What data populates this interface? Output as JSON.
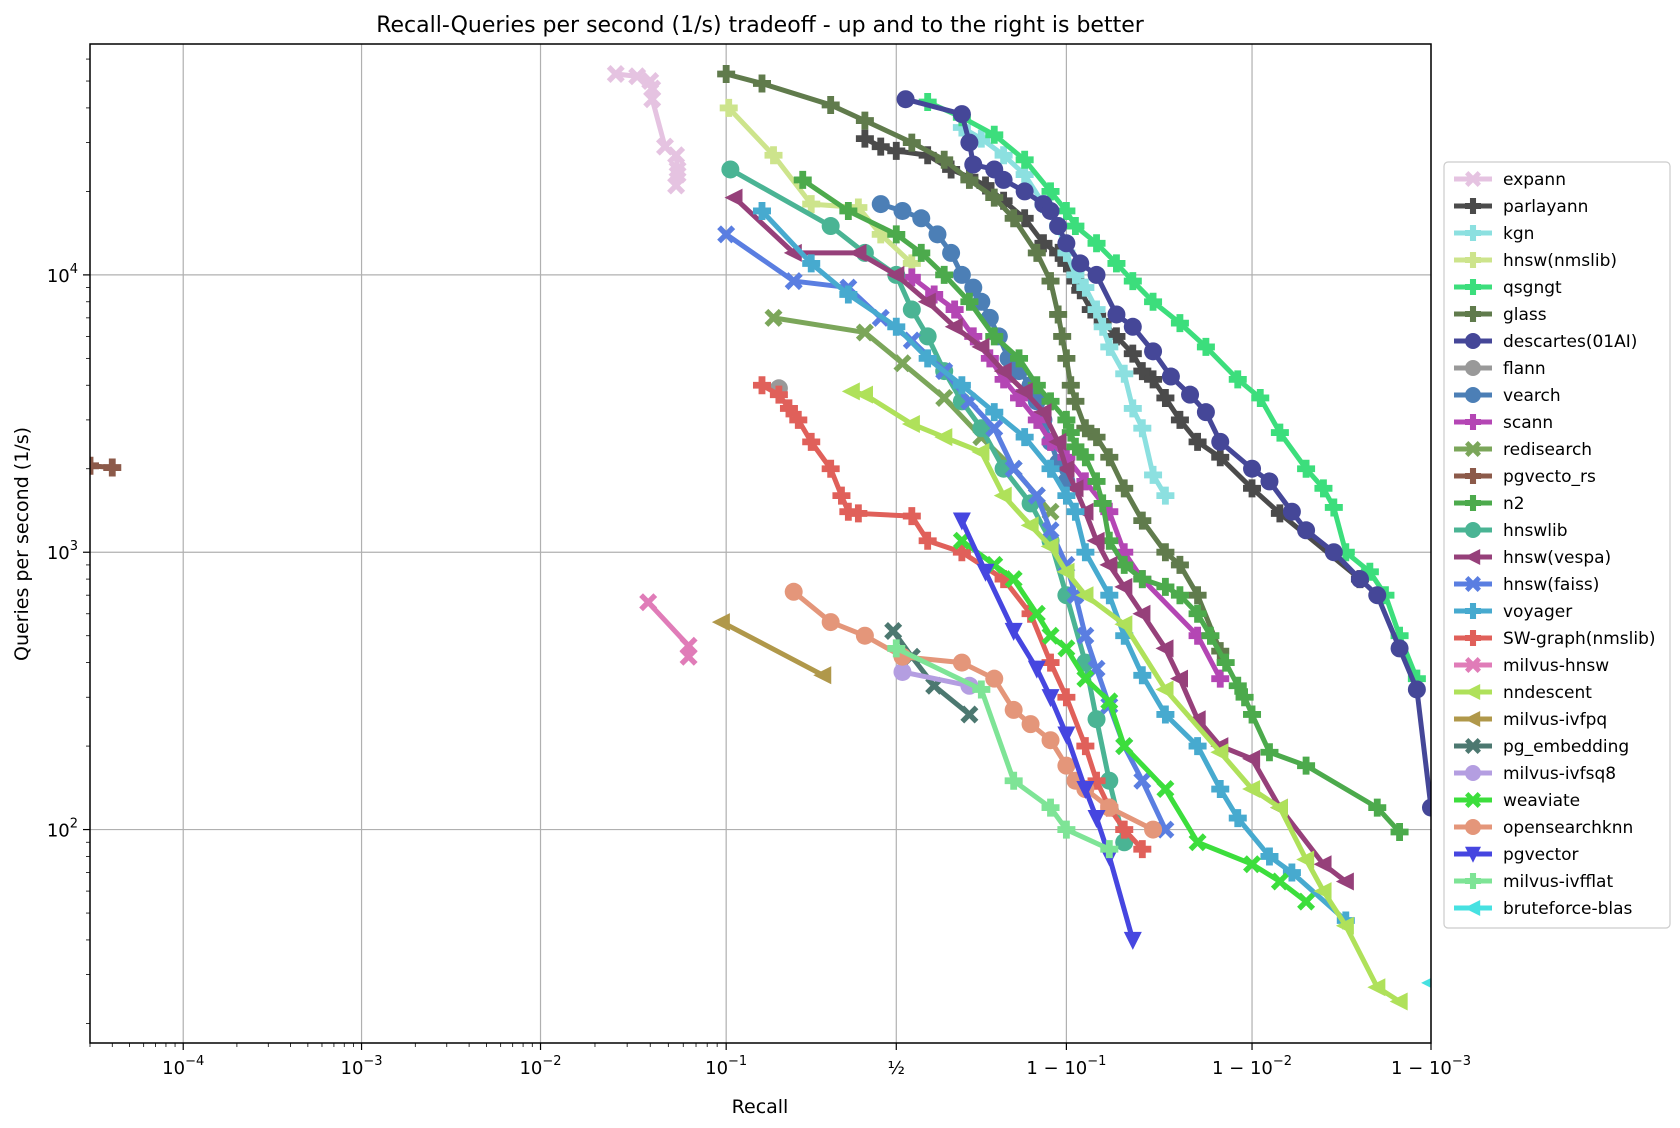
{
  "chart_data": {
    "type": "line",
    "title": "Recall-Queries per second (1/s) tradeoff - up and to the right is better",
    "xlabel": "Recall",
    "ylabel": "Queries per second (1/s)",
    "x_scale": "logit",
    "y_scale": "log",
    "xlim": [
      3e-05,
      0.999
    ],
    "ylim": [
      17,
      68000
    ],
    "grid": true,
    "legend_position": "right",
    "x_ticks": [
      {
        "value": 0.0001,
        "label": "10",
        "sup": "−4"
      },
      {
        "value": 0.001,
        "label": "10",
        "sup": "−3"
      },
      {
        "value": 0.01,
        "label": "10",
        "sup": "−2"
      },
      {
        "value": 0.1,
        "label": "10",
        "sup": "−1"
      },
      {
        "value": 0.5,
        "label": "½",
        "sup": ""
      },
      {
        "value": 0.9,
        "label": "1 − 10",
        "sup": "−1"
      },
      {
        "value": 0.99,
        "label": "1 − 10",
        "sup": "−2"
      },
      {
        "value": 0.999,
        "label": "1 − 10",
        "sup": "−3"
      }
    ],
    "y_ticks": [
      {
        "value": 100,
        "label": "10",
        "sup": "2"
      },
      {
        "value": 1000,
        "label": "10",
        "sup": "3"
      },
      {
        "value": 10000,
        "label": "10",
        "sup": "4"
      }
    ],
    "series": [
      {
        "name": "expann",
        "color": "#e5c3e1",
        "marker": "x",
        "x": [
          0.026,
          0.034,
          0.04,
          0.041,
          0.041,
          0.048,
          0.055,
          0.056,
          0.056,
          0.055
        ],
        "y": [
          53000,
          52000,
          50000,
          47000,
          43000,
          29000,
          27000,
          24000,
          23000,
          21000
        ]
      },
      {
        "name": "parlayann",
        "color": "#4b4b4b",
        "marker": "P",
        "x": [
          0.4,
          0.45,
          0.5,
          0.6,
          0.67,
          0.72,
          0.76,
          0.8,
          0.84,
          0.87,
          0.89,
          0.9,
          0.91,
          0.915,
          0.925,
          0.935,
          0.945,
          0.955,
          0.96,
          0.965,
          0.97,
          0.975,
          0.98,
          0.985,
          0.99,
          0.993,
          0.9975
        ],
        "y": [
          31000,
          29000,
          28000,
          27000,
          24000,
          22500,
          21000,
          18500,
          16000,
          13000,
          12000,
          11000,
          9500,
          8800,
          7500,
          6800,
          6000,
          5200,
          4500,
          4200,
          3600,
          3000,
          2500,
          2200,
          1700,
          1380,
          800
        ]
      },
      {
        "name": "kgn",
        "color": "#8ce0e0",
        "marker": "P",
        "x": [
          0.7,
          0.75,
          0.8,
          0.84,
          0.87,
          0.89,
          0.9,
          0.91,
          0.92,
          0.93,
          0.935,
          0.94,
          0.95,
          0.955,
          0.96,
          0.965,
          0.97
        ],
        "y": [
          34000,
          31000,
          27000,
          23000,
          18000,
          15000,
          12000,
          10000,
          9000,
          7500,
          6500,
          5500,
          4400,
          3300,
          2800,
          1900,
          1600
        ]
      },
      {
        "name": "hnsw(nmslib)",
        "color": "#cde48c",
        "marker": "P",
        "x": [
          0.103,
          0.17,
          0.25,
          0.38,
          0.45,
          0.55
        ],
        "y": [
          40000,
          27000,
          18000,
          17500,
          14000,
          11000
        ]
      },
      {
        "name": "qsgngt",
        "color": "#3cde7c",
        "marker": "P",
        "x": [
          0.6,
          0.7,
          0.78,
          0.84,
          0.88,
          0.9,
          0.91,
          0.93,
          0.945,
          0.955,
          0.965,
          0.975,
          0.982,
          0.988,
          0.991,
          0.993,
          0.995,
          0.996,
          0.9965,
          0.997,
          0.9978,
          0.9982,
          0.9985,
          0.9988
        ],
        "y": [
          42000,
          37000,
          32000,
          26000,
          20000,
          17000,
          15000,
          13000,
          11000,
          9500,
          8000,
          6700,
          5500,
          4200,
          3600,
          2700,
          2000,
          1700,
          1450,
          1000,
          850,
          700,
          500,
          350
        ]
      },
      {
        "name": "glass",
        "color": "#607b4c",
        "marker": "P",
        "x": [
          0.1,
          0.15,
          0.3,
          0.4,
          0.55,
          0.65,
          0.72,
          0.78,
          0.82,
          0.86,
          0.88,
          0.89,
          0.895,
          0.9,
          0.905,
          0.91,
          0.92,
          0.93,
          0.94,
          0.95,
          0.96,
          0.97,
          0.975,
          0.98,
          0.985
        ],
        "y": [
          53000,
          49000,
          41000,
          36000,
          30000,
          26000,
          22000,
          19000,
          16000,
          12000,
          9500,
          7200,
          6000,
          5000,
          4000,
          3500,
          2800,
          2600,
          2200,
          1700,
          1300,
          1000,
          900,
          700,
          440
        ]
      },
      {
        "name": "descartes(01AI)",
        "color": "#454798",
        "marker": "o",
        "x": [
          0.53,
          0.7,
          0.72,
          0.73,
          0.78,
          0.8,
          0.84,
          0.87,
          0.88,
          0.89,
          0.9,
          0.915,
          0.93,
          0.945,
          0.955,
          0.965,
          0.972,
          0.978,
          0.982,
          0.985,
          0.99,
          0.992,
          0.994,
          0.995,
          0.9965,
          0.9975,
          0.998,
          0.9985,
          0.9988,
          0.999
        ],
        "y": [
          43000,
          38000,
          30000,
          25000,
          24000,
          22000,
          20000,
          18000,
          17000,
          15000,
          13000,
          11000,
          10000,
          7200,
          6500,
          5300,
          4300,
          3700,
          3200,
          2500,
          2000,
          1800,
          1400,
          1200,
          1000,
          800,
          700,
          450,
          320,
          120
        ]
      },
      {
        "name": "flann",
        "color": "#999999",
        "marker": "o",
        "x": [
          0.18
        ],
        "y": [
          3900
        ]
      },
      {
        "name": "vearch",
        "color": "#4c7fb6",
        "marker": "o",
        "x": [
          0.45,
          0.52,
          0.58,
          0.63,
          0.67,
          0.7,
          0.73,
          0.75,
          0.77,
          0.79,
          0.81,
          0.83,
          0.85,
          0.86,
          0.87,
          0.88,
          0.89,
          0.9
        ],
        "y": [
          18000,
          17000,
          16000,
          14000,
          12000,
          10000,
          9000,
          8000,
          7000,
          6000,
          5000,
          4500,
          4000,
          3500,
          3000,
          2500,
          2100,
          1800
        ]
      },
      {
        "name": "scann",
        "color": "#b446b4",
        "marker": "P",
        "x": [
          0.55,
          0.62,
          0.68,
          0.73,
          0.77,
          0.8,
          0.83,
          0.86,
          0.88,
          0.9,
          0.92,
          0.94,
          0.95,
          0.96,
          0.98,
          0.985
        ],
        "y": [
          9800,
          8500,
          7500,
          6000,
          5000,
          4200,
          3600,
          3000,
          2500,
          2200,
          1800,
          1400,
          1000,
          800,
          500,
          350
        ]
      },
      {
        "name": "redisearch",
        "color": "#7ba65a",
        "marker": "X",
        "x": [
          0.17,
          0.4,
          0.52,
          0.65,
          0.75,
          0.82,
          0.86,
          0.88
        ],
        "y": [
          7000,
          6200,
          4800,
          3600,
          2600,
          2000,
          1600,
          1400
        ]
      },
      {
        "name": "pgvecto_rs",
        "color": "#8c5a4a",
        "marker": "P",
        "x": [
          3e-05,
          4e-05
        ],
        "y": [
          2050,
          2020
        ]
      },
      {
        "name": "n2",
        "color": "#4caa4c",
        "marker": "P",
        "x": [
          0.23,
          0.35,
          0.5,
          0.58,
          0.65,
          0.72,
          0.78,
          0.83,
          0.86,
          0.88,
          0.9,
          0.905,
          0.91,
          0.92,
          0.93,
          0.935,
          0.94,
          0.95,
          0.96,
          0.97,
          0.975,
          0.98,
          0.983,
          0.986,
          0.988,
          0.989,
          0.99,
          0.992,
          0.995,
          0.998,
          0.9985
        ],
        "y": [
          22000,
          17000,
          14000,
          12000,
          10000,
          8000,
          6000,
          5000,
          4000,
          3500,
          3000,
          2700,
          2400,
          2200,
          1800,
          1500,
          1100,
          900,
          800,
          750,
          700,
          600,
          500,
          400,
          330,
          300,
          260,
          190,
          170,
          120,
          98
        ]
      },
      {
        "name": "hnswlib",
        "color": "#4ab494",
        "marker": "o",
        "x": [
          0.105,
          0.3,
          0.4,
          0.5,
          0.55,
          0.6,
          0.65,
          0.7,
          0.75,
          0.8,
          0.85,
          0.88,
          0.9,
          0.92,
          0.93,
          0.94,
          0.95
        ],
        "y": [
          24000,
          15000,
          12000,
          10000,
          7500,
          6000,
          4500,
          3500,
          2800,
          2000,
          1500,
          1100,
          700,
          400,
          250,
          150,
          90
        ]
      },
      {
        "name": "hnsw(vespa)",
        "color": "#96407a",
        "marker": "<",
        "x": [
          0.11,
          0.21,
          0.38,
          0.5,
          0.6,
          0.68,
          0.75,
          0.8,
          0.84,
          0.87,
          0.89,
          0.9,
          0.91,
          0.92,
          0.93,
          0.94,
          0.95,
          0.96,
          0.97,
          0.975,
          0.98,
          0.985,
          0.99,
          0.993,
          0.996,
          0.997
        ],
        "y": [
          19000,
          12000,
          12000,
          10000,
          8000,
          6500,
          5500,
          4500,
          3800,
          3200,
          2500,
          2000,
          1700,
          1400,
          1100,
          900,
          750,
          600,
          450,
          350,
          250,
          200,
          180,
          120,
          75,
          65
        ]
      },
      {
        "name": "hnsw(faiss)",
        "color": "#5a7ee1",
        "marker": "X",
        "x": [
          0.1,
          0.21,
          0.35,
          0.45,
          0.55,
          0.65,
          0.72,
          0.78,
          0.82,
          0.86,
          0.88,
          0.9,
          0.91,
          0.92,
          0.93,
          0.94,
          0.95,
          0.96,
          0.97
        ],
        "y": [
          14000,
          9500,
          9000,
          7000,
          5800,
          4500,
          3500,
          2800,
          2000,
          1600,
          1200,
          900,
          700,
          500,
          380,
          280,
          200,
          150,
          100
        ]
      },
      {
        "name": "voyager",
        "color": "#47aacf",
        "marker": "P",
        "x": [
          0.15,
          0.25,
          0.35,
          0.5,
          0.6,
          0.7,
          0.78,
          0.84,
          0.88,
          0.9,
          0.91,
          0.92,
          0.94,
          0.95,
          0.96,
          0.97,
          0.98,
          0.985,
          0.988,
          0.992,
          0.994,
          0.997
        ],
        "y": [
          17000,
          11000,
          8500,
          6500,
          5000,
          4000,
          3200,
          2600,
          2000,
          1600,
          1400,
          1000,
          700,
          500,
          360,
          260,
          200,
          140,
          110,
          80,
          70,
          47
        ]
      },
      {
        "name": "SW-graph(nmslib)",
        "color": "#e0605a",
        "marker": "P",
        "x": [
          0.15,
          0.18,
          0.2,
          0.22,
          0.25,
          0.3,
          0.33,
          0.35,
          0.38,
          0.55,
          0.6,
          0.7,
          0.8,
          0.85,
          0.88,
          0.9,
          0.92,
          0.93,
          0.94,
          0.95,
          0.96
        ],
        "y": [
          4000,
          3700,
          3300,
          3000,
          2500,
          2000,
          1600,
          1400,
          1380,
          1350,
          1100,
          1000,
          800,
          600,
          400,
          300,
          200,
          150,
          120,
          100,
          85
        ]
      },
      {
        "name": "milvus-hnsw",
        "color": "#e07cb8",
        "marker": "X",
        "x": [
          0.039,
          0.064,
          0.064
        ],
        "y": [
          660,
          460,
          420
        ]
      },
      {
        "name": "nndescent",
        "color": "#afe15a",
        "marker": "<",
        "x": [
          0.36,
          0.4,
          0.55,
          0.65,
          0.75,
          0.8,
          0.85,
          0.88,
          0.9,
          0.92,
          0.95,
          0.97,
          0.985,
          0.99,
          0.993,
          0.995,
          0.996,
          0.997,
          0.998,
          0.9985
        ],
        "y": [
          3800,
          3700,
          2900,
          2600,
          2300,
          1600,
          1250,
          1050,
          850,
          700,
          550,
          320,
          190,
          140,
          120,
          78,
          60,
          45,
          27,
          24
        ]
      },
      {
        "name": "milvus-ivfpq",
        "color": "#b0984a",
        "marker": "<",
        "x": [
          0.095,
          0.28
        ],
        "y": [
          560,
          360
        ]
      },
      {
        "name": "pg_embedding",
        "color": "#4c7870",
        "marker": "X",
        "x": [
          0.49,
          0.55,
          0.62,
          0.72
        ],
        "y": [
          520,
          420,
          330,
          260
        ]
      },
      {
        "name": "milvus-ivfsq8",
        "color": "#b49ee1",
        "marker": "o",
        "x": [
          0.52,
          0.72
        ],
        "y": [
          370,
          330
        ]
      },
      {
        "name": "weaviate",
        "color": "#3cde3c",
        "marker": "X",
        "x": [
          0.7,
          0.78,
          0.82,
          0.86,
          0.88,
          0.9,
          0.92,
          0.94,
          0.95,
          0.97,
          0.98,
          0.99,
          0.993,
          0.995
        ],
        "y": [
          1100,
          900,
          800,
          600,
          500,
          450,
          350,
          290,
          200,
          140,
          90,
          75,
          65,
          55
        ]
      },
      {
        "name": "opensearchknn",
        "color": "#e4967a",
        "marker": "o",
        "x": [
          0.21,
          0.3,
          0.4,
          0.52,
          0.7,
          0.78,
          0.82,
          0.85,
          0.88,
          0.9,
          0.91,
          0.92,
          0.94,
          0.965
        ],
        "y": [
          720,
          560,
          500,
          420,
          400,
          350,
          270,
          240,
          210,
          170,
          150,
          140,
          120,
          100
        ]
      },
      {
        "name": "pgvector",
        "color": "#4646e0",
        "marker": "v",
        "x": [
          0.7,
          0.76,
          0.82,
          0.86,
          0.88,
          0.9,
          0.92,
          0.93,
          0.94,
          0.955
        ],
        "y": [
          1300,
          850,
          520,
          380,
          300,
          220,
          140,
          110,
          80,
          40
        ]
      },
      {
        "name": "milvus-ivfflat",
        "color": "#7ee496",
        "marker": "P",
        "x": [
          0.5,
          0.75,
          0.82,
          0.88,
          0.9,
          0.94
        ],
        "y": [
          450,
          320,
          150,
          120,
          100,
          85
        ]
      },
      {
        "name": "bruteforce-blas",
        "color": "#46e1e1",
        "marker": "<",
        "x": [
          0.999
        ],
        "y": [
          28
        ]
      }
    ]
  }
}
